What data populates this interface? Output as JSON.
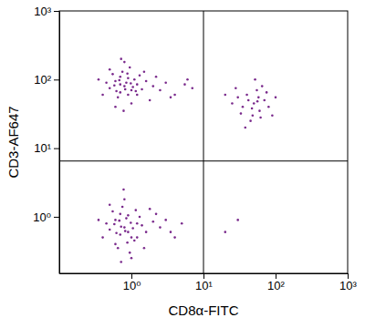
{
  "chart_data": {
    "type": "scatter",
    "x_label": "CD8α-FITC",
    "y_label": "CD3-AF647",
    "log": true,
    "color": "#7a2a8c",
    "marker": "circle",
    "xlim": [
      0.1,
      1000
    ],
    "ylim": [
      0.15,
      1000
    ],
    "xticks": [
      {
        "value": 1,
        "label": "10⁰"
      },
      {
        "value": 10,
        "label": "10¹"
      },
      {
        "value": 100,
        "label": "10²"
      },
      {
        "value": 1000,
        "label": "10³"
      }
    ],
    "yticks": [
      {
        "value": 1,
        "label": "10⁰"
      },
      {
        "value": 10,
        "label": "10¹"
      },
      {
        "value": 100,
        "label": "10²"
      },
      {
        "value": 1000,
        "label": "10³"
      }
    ],
    "quadrant_x": 10,
    "quadrant_y": 6.5,
    "x": [
      0.8,
      0.6,
      1.0,
      0.7,
      0.9,
      1.2,
      0.5,
      0.75,
      1.1,
      0.65,
      0.85,
      1.4,
      0.55,
      0.95,
      0.7,
      1.3,
      0.45,
      1.0,
      0.8,
      1.6,
      0.6,
      2.0,
      0.9,
      0.7,
      1.2,
      0.5,
      1.05,
      0.62,
      0.88,
      2.5,
      3.0,
      4.0,
      5.5,
      7.0,
      1.8,
      0.4,
      0.35,
      1.5,
      0.78,
      0.72,
      2.2,
      3.5,
      0.98,
      0.58,
      1.15,
      6.0,
      0.82,
      0.68,
      50,
      40,
      60,
      35,
      70,
      45,
      55,
      30,
      80,
      48,
      65,
      25,
      42,
      58,
      90,
      38,
      52,
      75,
      28,
      47,
      62,
      33,
      100,
      20,
      56,
      0.8,
      0.6,
      1.0,
      0.7,
      0.9,
      1.2,
      0.5,
      0.75,
      1.1,
      0.65,
      0.85,
      1.4,
      0.55,
      0.95,
      0.7,
      1.3,
      0.45,
      1.0,
      0.8,
      1.6,
      0.6,
      2.0,
      0.9,
      0.72,
      1.2,
      0.5,
      1.05,
      0.62,
      0.88,
      2.5,
      3.0,
      4.0,
      1.8,
      0.4,
      0.35,
      1.5,
      0.78,
      0.72,
      2.2,
      3.5,
      0.98,
      0.58,
      1.15,
      0.82,
      0.68,
      5.0,
      20,
      30
    ],
    "values": [
      80,
      95,
      70,
      110,
      60,
      85,
      75,
      130,
      100,
      55,
      90,
      72,
      120,
      150,
      65,
      115,
      90,
      45,
      180,
      95,
      40,
      80,
      105,
      85,
      60,
      140,
      78,
      68,
      122,
      70,
      90,
      60,
      85,
      75,
      50,
      60,
      100,
      130,
      35,
      200,
      110,
      55,
      88,
      82,
      68,
      100,
      72,
      98,
      45,
      60,
      35,
      40,
      50,
      25,
      70,
      55,
      40,
      30,
      80,
      45,
      50,
      55,
      30,
      20,
      100,
      65,
      75,
      38,
      28,
      32,
      55,
      60,
      48,
      0.7,
      0.9,
      0.5,
      1.1,
      0.6,
      0.8,
      0.65,
      1.4,
      0.45,
      0.35,
      0.95,
      0.75,
      1.2,
      0.3,
      0.55,
      1.0,
      0.8,
      0.25,
      1.8,
      0.6,
      0.4,
      0.85,
      1.05,
      0.72,
      0.5,
      1.5,
      0.68,
      0.58,
      0.42,
      0.7,
      0.9,
      0.5,
      1.3,
      0.5,
      0.9,
      0.35,
      2.5,
      0.22,
      1.1,
      0.6,
      0.82,
      0.78,
      1.25,
      0.62,
      0.88,
      0.8,
      0.6,
      0.9
    ]
  }
}
